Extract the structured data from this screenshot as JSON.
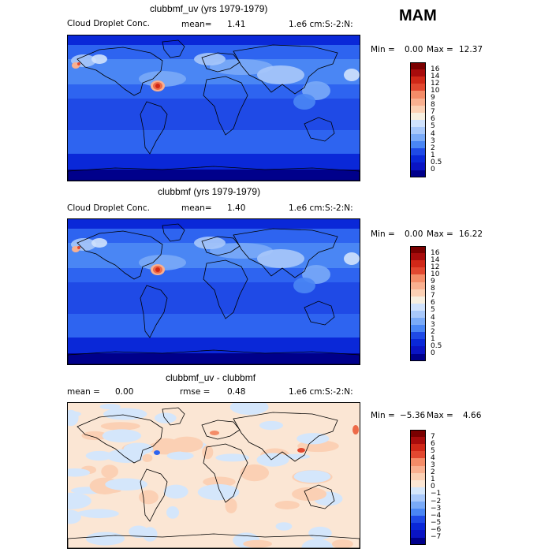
{
  "season": "MAM",
  "palette_main": [
    "#00008b",
    "#0a14c4",
    "#0a28d8",
    "#1f4ae6",
    "#2e64f0",
    "#4a86f4",
    "#7aaaf7",
    "#a8c8fa",
    "#d0e2fc",
    "#f7efe0",
    "#fbd0b4",
    "#f9b090",
    "#f48c68",
    "#ee6a48",
    "#e24830",
    "#d02818",
    "#a80c0c",
    "#7a0000"
  ],
  "palette_diff": [
    "#00008b",
    "#0a14c4",
    "#0a28d8",
    "#1f4ae6",
    "#2e64f0",
    "#4a86f4",
    "#7aaaf7",
    "#a8c8fa",
    "#d4e6fb",
    "#fbe6d4",
    "#fbd0b4",
    "#f9b090",
    "#f48c68",
    "#ee6a48",
    "#e24830",
    "#d02818",
    "#a80c0c",
    "#7a0000"
  ],
  "panels": [
    {
      "title": "clubbmf_uv (yrs 1979-1979)",
      "left_label": "Cloud Droplet Conc.",
      "mean_label": "mean=",
      "mean_value": "1.41",
      "units": "1.e6 cm:S:-2:N:",
      "min_label": "Min =",
      "min_value": "0.00",
      "max_label": "Max =",
      "max_value": "12.37",
      "colorbar_ticks": [
        "16",
        "14",
        "12",
        "10",
        "9",
        "8",
        "7",
        "6",
        "5",
        "4",
        "3",
        "2",
        "1",
        "0.5",
        "0"
      ]
    },
    {
      "title": "clubbmf (yrs 1979-1979)",
      "left_label": "Cloud Droplet Conc.",
      "mean_label": "mean=",
      "mean_value": "1.40",
      "units": "1.e6 cm:S:-2:N:",
      "min_label": "Min =",
      "min_value": "0.00",
      "max_label": "Max =",
      "max_value": "16.22",
      "colorbar_ticks": [
        "16",
        "14",
        "12",
        "10",
        "9",
        "8",
        "7",
        "6",
        "5",
        "4",
        "3",
        "2",
        "1",
        "0.5",
        "0"
      ]
    },
    {
      "title": "clubbmf_uv - clubbmf",
      "mean_label": "mean =",
      "mean_value": "0.00",
      "rmse_label": "rmse =",
      "rmse_value": "0.48",
      "units": "1.e6 cm:S:-2:N:",
      "min_label": "Min =",
      "min_value": "−5.36",
      "max_label": "Max =",
      "max_value": "4.66",
      "colorbar_ticks": [
        "7",
        "6",
        "5",
        "4",
        "3",
        "2",
        "1",
        "0",
        "−1",
        "−2",
        "−3",
        "−4",
        "−5",
        "−6",
        "−7"
      ]
    }
  ],
  "chart_data": [
    {
      "type": "heatmap",
      "title": "clubbmf_uv (yrs 1979-1979)",
      "variable": "Cloud Droplet Conc.",
      "units": "1.e6 cm:S:-2:N:",
      "mean": 1.41,
      "min": 0.0,
      "max": 12.37,
      "levels": [
        0,
        0.5,
        1,
        2,
        3,
        4,
        5,
        6,
        7,
        8,
        9,
        10,
        12,
        14,
        16
      ]
    },
    {
      "type": "heatmap",
      "title": "clubbmf (yrs 1979-1979)",
      "variable": "Cloud Droplet Conc.",
      "units": "1.e6 cm:S:-2:N:",
      "mean": 1.4,
      "min": 0.0,
      "max": 16.22,
      "levels": [
        0,
        0.5,
        1,
        2,
        3,
        4,
        5,
        6,
        7,
        8,
        9,
        10,
        12,
        14,
        16
      ]
    },
    {
      "type": "heatmap",
      "title": "clubbmf_uv - clubbmf",
      "units": "1.e6 cm:S:-2:N:",
      "mean": 0.0,
      "rmse": 0.48,
      "min": -5.36,
      "max": 4.66,
      "levels": [
        -7,
        -6,
        -5,
        -4,
        -3,
        -2,
        -1,
        0,
        1,
        2,
        3,
        4,
        5,
        6,
        7
      ]
    }
  ]
}
